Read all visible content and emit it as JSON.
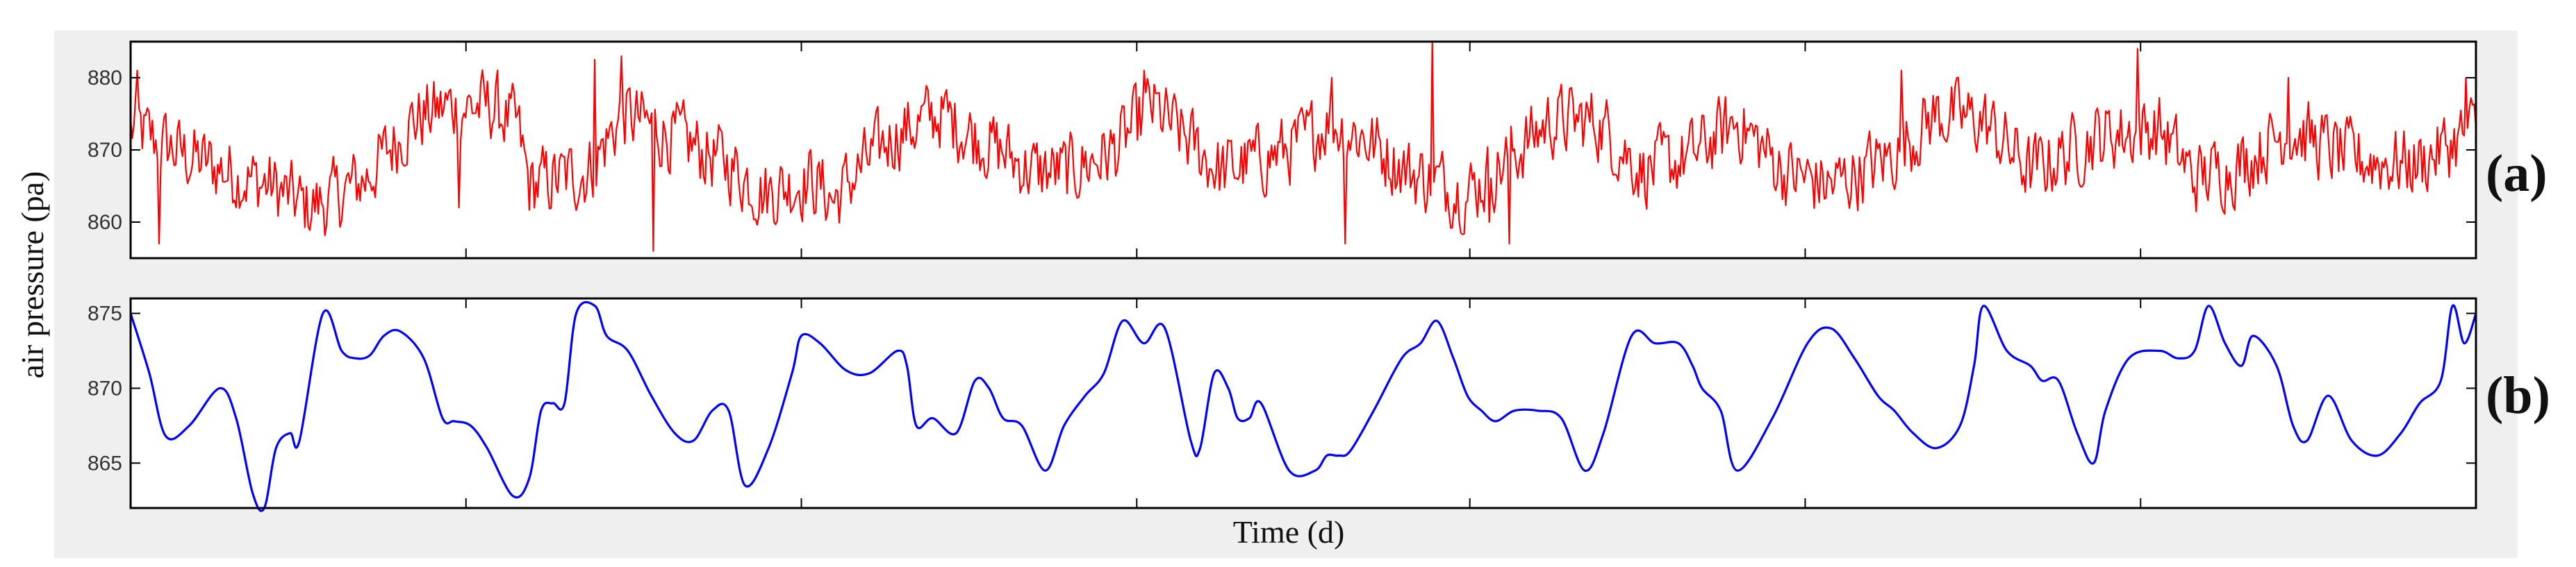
{
  "colors": {
    "page_background": "#ffffff",
    "figure_background": "#efefef",
    "plot_background": "#ffffff",
    "axis": "#000000",
    "series_a": "#ff0000",
    "series_b": "#0000ff"
  },
  "shared": {
    "ylabel": "air pressure (pa)",
    "xlabel": "Time (d)"
  },
  "chart_data": [
    {
      "type": "line",
      "panel_label": "(a)",
      "title": "",
      "xlabel": "",
      "ylabel": "air pressure (pa)",
      "ylim": [
        855,
        885
      ],
      "yticks": [
        860,
        870,
        880
      ],
      "ytick_labels": [
        "860",
        "870",
        "880"
      ],
      "xlim": [
        0,
        1000
      ],
      "xticks": [
        0,
        143,
        286,
        429,
        571,
        714,
        857,
        1000
      ],
      "grid": false,
      "legend": "none",
      "series": [
        {
          "color": "#ff0000",
          "smooth": false,
          "noise_amplitude": 4.5,
          "spikes": [
            [
              3,
              881
            ],
            [
              12,
              857
            ],
            [
              140,
              862
            ],
            [
              198,
              882.5
            ],
            [
              209,
              883
            ],
            [
              223,
              856
            ],
            [
              432,
              881
            ],
            [
              512,
              880
            ],
            [
              518,
              857
            ],
            [
              555,
              885
            ],
            [
              579,
              860
            ],
            [
              588,
              857
            ],
            [
              755,
              881
            ],
            [
              856,
              884
            ],
            [
              920,
              880
            ],
            [
              996,
              880
            ]
          ],
          "baseline": [
            [
              0,
              873
            ],
            [
              25,
              869
            ],
            [
              50,
              866
            ],
            [
              60,
              865
            ],
            [
              75,
              862
            ],
            [
              85,
              863
            ],
            [
              100,
              866
            ],
            [
              120,
              874
            ],
            [
              135,
              876
            ],
            [
              155,
              876
            ],
            [
              165,
              873
            ],
            [
              170,
              865
            ],
            [
              195,
              867
            ],
            [
              210,
              875
            ],
            [
              230,
              872
            ],
            [
              255,
              868
            ],
            [
              270,
              864
            ],
            [
              290,
              866
            ],
            [
              300,
              863
            ],
            [
              310,
              867
            ],
            [
              325,
              872
            ],
            [
              345,
              875
            ],
            [
              365,
              871
            ],
            [
              385,
              867
            ],
            [
              400,
              867
            ],
            [
              420,
              870
            ],
            [
              435,
              876
            ],
            [
              465,
              867
            ],
            [
              485,
              869
            ],
            [
              500,
              871
            ],
            [
              510,
              874
            ],
            [
              525,
              872
            ],
            [
              545,
              867
            ],
            [
              570,
              864
            ],
            [
              585,
              868
            ],
            [
              605,
              874
            ],
            [
              625,
              874
            ],
            [
              645,
              867
            ],
            [
              665,
              869
            ],
            [
              685,
              874
            ],
            [
              705,
              867
            ],
            [
              725,
              865
            ],
            [
              750,
              869
            ],
            [
              770,
              875
            ],
            [
              790,
              874
            ],
            [
              810,
              867
            ],
            [
              840,
              872
            ],
            [
              865,
              873
            ],
            [
              880,
              866
            ],
            [
              900,
              868
            ],
            [
              920,
              873
            ],
            [
              945,
              869
            ],
            [
              975,
              868
            ],
            [
              1000,
              873
            ]
          ]
        }
      ]
    },
    {
      "type": "line",
      "panel_label": "(b)",
      "title": "",
      "xlabel": "Time (d)",
      "ylabel": "air pressure (pa)",
      "ylim": [
        862,
        876
      ],
      "yticks": [
        865,
        870,
        875
      ],
      "ytick_labels": [
        "865",
        "870",
        "875"
      ],
      "xlim": [
        0,
        1000
      ],
      "xticks": [
        0,
        143,
        286,
        429,
        571,
        714,
        857,
        1000
      ],
      "grid": false,
      "legend": "none",
      "series": [
        {
          "color": "#0000ff",
          "smooth": true,
          "x": [
            0,
            8,
            15,
            25,
            38,
            45,
            52,
            57,
            62,
            68,
            72,
            82,
            90,
            96,
            102,
            108,
            115,
            125,
            133,
            138,
            145,
            152,
            163,
            170,
            175,
            180,
            185,
            190,
            198,
            203,
            212,
            222,
            232,
            240,
            248,
            255,
            262,
            272,
            282,
            286,
            294,
            305,
            315,
            327,
            331,
            335,
            342,
            352,
            360,
            366,
            372,
            380,
            390,
            398,
            407,
            415,
            423,
            432,
            441,
            452,
            456,
            462,
            468,
            472,
            477,
            482,
            494,
            505,
            510,
            515,
            520,
            530,
            542,
            550,
            557,
            564,
            570,
            576,
            582,
            590,
            600,
            610,
            620,
            628,
            640,
            650,
            660,
            666,
            670,
            678,
            685,
            700,
            715,
            725,
            735,
            745,
            752,
            760,
            770,
            780,
            786,
            790,
            800,
            810,
            815,
            822,
            830,
            837,
            842,
            852,
            865,
            873,
            880,
            886,
            893,
            900,
            905,
            915,
            922,
            928,
            937,
            947,
            958,
            968,
            976,
            985,
            990,
            995,
            1000
          ],
          "y": [
            875,
            871,
            866.8,
            867.5,
            870,
            868,
            863,
            862,
            866,
            867,
            866.5,
            875,
            872.5,
            872,
            872.2,
            873.5,
            873.8,
            872,
            868,
            867.8,
            867.5,
            866,
            862.8,
            864,
            868.5,
            869,
            869,
            875,
            875.5,
            873.5,
            872.5,
            869.5,
            867,
            866.5,
            868.5,
            868.5,
            863.5,
            866,
            871,
            873.5,
            873,
            871.2,
            871,
            872.5,
            871.5,
            867.5,
            868,
            867,
            870.5,
            870,
            868,
            867.5,
            864.5,
            867.5,
            869.5,
            871,
            874.5,
            873,
            874,
            866.5,
            866,
            871,
            870,
            868,
            868,
            869,
            864.5,
            864.5,
            865.5,
            865.5,
            865.8,
            868.5,
            872,
            873,
            874.5,
            872,
            869.5,
            868.5,
            867.8,
            868.5,
            868.5,
            868,
            864.5,
            867,
            873.5,
            873,
            873,
            871.5,
            870,
            868.5,
            864.5,
            868,
            873,
            874,
            872,
            869.5,
            868.5,
            867,
            866,
            867.5,
            871.5,
            875.5,
            872.5,
            871.5,
            870.5,
            870.5,
            867,
            865,
            868.5,
            872,
            872.5,
            872,
            872.5,
            875.5,
            873,
            871.5,
            873.5,
            871.5,
            867.5,
            866.5,
            869.5,
            866.5,
            865.5,
            867,
            869,
            870.5,
            875.5,
            873,
            875
          ]
        }
      ]
    }
  ]
}
